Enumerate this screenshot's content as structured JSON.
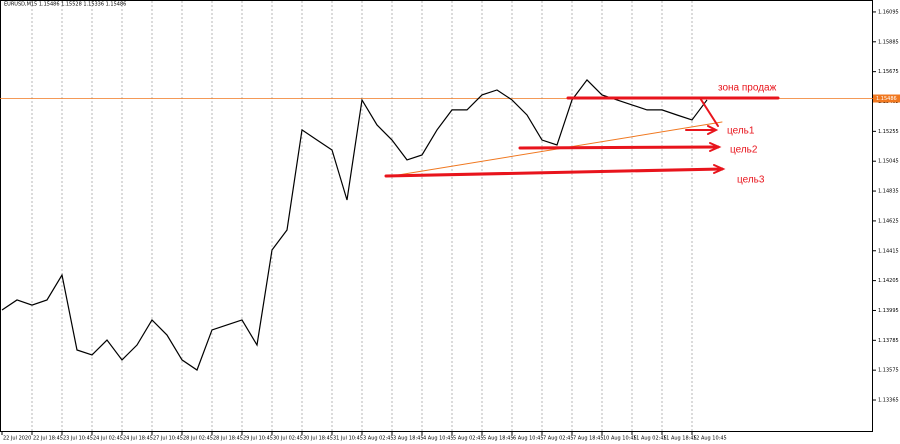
{
  "chart_data": {
    "type": "line",
    "header": "EURUSD,M15  1.15486 1.15528 1.15336 1.15486",
    "categories": [
      "22 Jul 2020",
      null,
      "22 Jul 18:45",
      null,
      "23 Jul 10:45",
      null,
      "24 Jul 02:45",
      null,
      "24 Jul 18:45",
      null,
      "27 Jul 10:45",
      null,
      "28 Jul 02:45",
      null,
      "28 Jul 18:45",
      null,
      "29 Jul 10:45",
      null,
      "30 Jul 02:45",
      null,
      "30 Jul 18:45",
      null,
      "31 Jul 10:45",
      null,
      "3 Aug 02:45",
      null,
      "3 Aug 18:45",
      null,
      "4 Aug 10:45",
      null,
      "5 Aug 02:45",
      null,
      "5 Aug 18:45",
      null,
      "6 Aug 10:45",
      null,
      "7 Aug 02:45",
      null,
      "7 Aug 18:45",
      null,
      "10 Aug 10:45",
      null,
      "11 Aug 02:45",
      null,
      "11 Aug 18:45",
      null,
      "12 Aug 10:45",
      null
    ],
    "series": [
      {
        "name": "EURUSD",
        "color": "#000000",
        "values": [
          1.13998,
          1.14069,
          1.14033,
          1.14069,
          1.14244,
          1.13717,
          1.13682,
          1.13787,
          1.13647,
          1.13752,
          1.13928,
          1.13822,
          1.13647,
          1.13576,
          1.13858,
          1.13893,
          1.13928,
          1.13752,
          1.1442,
          1.14561,
          1.15265,
          1.15194,
          1.15124,
          1.14772,
          1.15476,
          1.153,
          1.15194,
          1.15054,
          1.15089,
          1.15265,
          1.15406,
          1.15406,
          1.15511,
          1.15546,
          1.15476,
          1.1537,
          1.15194,
          1.15159,
          1.15476,
          1.15617,
          1.15511,
          1.15476,
          1.15441,
          1.15406,
          1.15406,
          1.1537,
          1.15335,
          1.15476
        ]
      }
    ],
    "current_price": 1.15486,
    "current_price_color": "#f07820",
    "ylim": [
      1.1314,
      1.16179
    ],
    "yticks": [
      1.16095,
      1.15885,
      1.15675,
      1.15465,
      1.15255,
      1.15045,
      1.14835,
      1.14625,
      1.14415,
      1.14205,
      1.13995,
      1.13785,
      1.13575,
      1.13365
    ],
    "grid": true,
    "annotations": [
      "зона продаж",
      "цель1",
      "цель2",
      "цель3"
    ]
  }
}
